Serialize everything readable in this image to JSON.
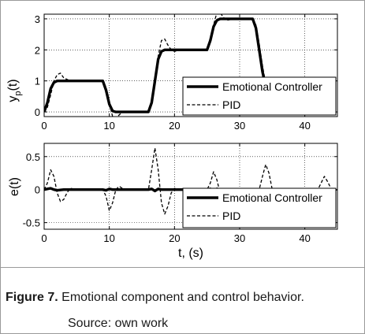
{
  "caption": {
    "label": "Figure 7.",
    "text": "Emotional component and control behavior.",
    "source": "Source: own work"
  },
  "colors": {
    "line": "#000000",
    "frame": "#9a9a9a"
  },
  "chart_data": [
    {
      "type": "line",
      "ylabel": "y_p(t)",
      "xlabel": "",
      "xlim": [
        0,
        45
      ],
      "ylim": [
        -0.15,
        3.15
      ],
      "xticks": [
        "0",
        "10",
        "20",
        "30",
        "40"
      ],
      "yticks": [
        "0",
        "1",
        "2",
        "3"
      ],
      "legend_position": "bottom-right",
      "grid": true,
      "series": [
        {
          "name": "Emotional Controller",
          "style": "solid-thick",
          "x": [
            0,
            0.5,
            1.0,
            1.5,
            2.0,
            3,
            9,
            9.5,
            10,
            10.5,
            11,
            16,
            16.5,
            17,
            17.5,
            18,
            18.5,
            19,
            25,
            25.5,
            26,
            26.5,
            27,
            27.5,
            32,
            32.5,
            33,
            33.5,
            34,
            34.5,
            35
          ],
          "y": [
            0,
            0.3,
            0.75,
            0.95,
            1.0,
            1.0,
            1.0,
            0.7,
            0.25,
            0.03,
            0.0,
            0.0,
            0.3,
            1.0,
            1.7,
            1.95,
            2.0,
            2.0,
            2.0,
            2.3,
            2.75,
            2.95,
            3.0,
            3.0,
            3.0,
            2.7,
            2.0,
            1.3,
            0.8,
            0.5,
            0.3
          ]
        },
        {
          "name": "PID",
          "style": "dashed",
          "x": [
            0,
            0.5,
            1.0,
            1.5,
            2.0,
            2.5,
            3.0,
            4,
            9,
            9.5,
            10,
            10.5,
            11,
            11.5,
            12,
            13,
            16,
            16.5,
            17,
            17.5,
            18,
            18.5,
            19,
            19.5,
            20,
            21,
            25,
            25.5,
            26,
            26.5,
            27,
            27.5,
            28,
            29,
            32,
            32.5,
            33,
            33.5,
            34,
            34.5,
            35
          ],
          "y": [
            0,
            0.15,
            0.55,
            1.0,
            1.2,
            1.25,
            1.1,
            1.0,
            1.0,
            0.8,
            0.3,
            -0.15,
            -0.2,
            -0.1,
            0.0,
            0.0,
            0.0,
            0.25,
            0.9,
            1.8,
            2.3,
            2.35,
            2.15,
            2.0,
            1.95,
            2.0,
            2.0,
            2.25,
            2.8,
            3.2,
            3.2,
            3.05,
            2.95,
            3.0,
            3.0,
            2.8,
            2.2,
            1.5,
            0.9,
            0.55,
            0.3
          ]
        }
      ]
    },
    {
      "type": "line",
      "ylabel": "e(t)",
      "xlabel": "t, (s)",
      "xlim": [
        0,
        45
      ],
      "ylim": [
        -0.6,
        0.7
      ],
      "xticks": [
        "0",
        "10",
        "20",
        "30",
        "40"
      ],
      "yticks": [
        "-0.5",
        "0",
        "0.5"
      ],
      "legend_position": "bottom-right",
      "grid": true,
      "series": [
        {
          "name": "Emotional Controller",
          "style": "solid-thick",
          "x": [
            0,
            0.5,
            1.0,
            1.5,
            2.0,
            3,
            9,
            9.5,
            10,
            10.5,
            11,
            16,
            16.5,
            17,
            17.5,
            18,
            19,
            25,
            25.5,
            26,
            26.5,
            27,
            32,
            32.5,
            33,
            33.5,
            34,
            35
          ],
          "y": [
            0,
            0.01,
            0.02,
            0.0,
            -0.01,
            0.0,
            0.0,
            -0.01,
            0.01,
            0.0,
            0.0,
            0.0,
            0.01,
            -0.02,
            0.01,
            0.0,
            0.0,
            0.0,
            0.01,
            -0.01,
            0.01,
            0.0,
            0.0,
            -0.04,
            -0.08,
            -0.02,
            0.0,
            0.0
          ]
        },
        {
          "name": "PID",
          "style": "dashed",
          "x": [
            0,
            0.5,
            1.0,
            1.5,
            2.0,
            2.5,
            3.0,
            3.5,
            4.0,
            5.0,
            9,
            9.5,
            10,
            10.5,
            11,
            11.5,
            12,
            13,
            16,
            16.5,
            17,
            17.5,
            18,
            18.5,
            19,
            19.5,
            20,
            21,
            25,
            25.5,
            26,
            26.5,
            27,
            27.5,
            28,
            29,
            33,
            33.5,
            34,
            34.5,
            35,
            35.5,
            36,
            37,
            42,
            42.5,
            43,
            43.5,
            44,
            44.5,
            45
          ],
          "y": [
            0.0,
            0.1,
            0.3,
            0.2,
            -0.05,
            -0.18,
            -0.15,
            -0.05,
            0.02,
            0.0,
            0.0,
            -0.1,
            -0.32,
            -0.2,
            0.0,
            0.05,
            0.02,
            0.0,
            0.0,
            0.3,
            0.63,
            0.3,
            -0.2,
            -0.37,
            -0.25,
            -0.05,
            0.02,
            0.0,
            0.0,
            0.1,
            0.27,
            0.15,
            -0.05,
            -0.12,
            -0.05,
            0.0,
            0.0,
            0.2,
            0.38,
            0.25,
            0.0,
            -0.08,
            -0.04,
            0.0,
            0.0,
            0.1,
            0.2,
            0.12,
            0.02,
            -0.02,
            0.0
          ]
        }
      ]
    }
  ]
}
